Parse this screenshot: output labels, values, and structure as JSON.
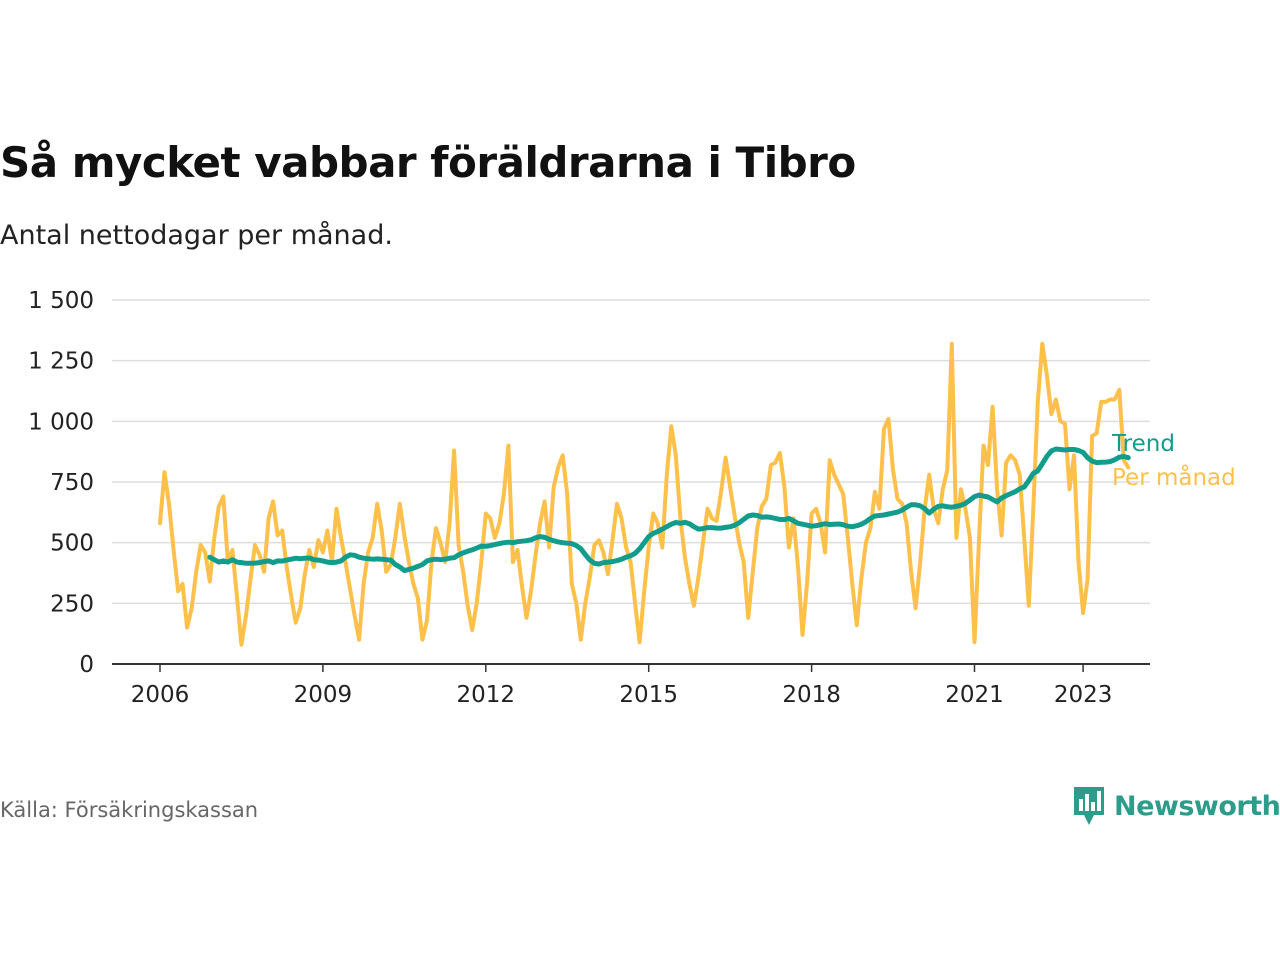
{
  "title": "Så mycket vabbar föräldrarna i Tibro",
  "subtitle": "Antal nettodagar per månad.",
  "source": "Källa: Försäkringskassan",
  "brand": {
    "name": "Newsworthy",
    "color": "#2e9c8a",
    "icon": "newsworthy-logo-icon"
  },
  "colors": {
    "trend": "#129c8c",
    "monthly": "#fdc04a",
    "grid": "#dddddd",
    "axis": "#333333"
  },
  "chart_data": {
    "type": "line",
    "title": "Så mycket vabbar föräldrarna i Tibro",
    "subtitle": "Antal nettodagar per månad.",
    "ylim": [
      0,
      1500
    ],
    "yticks": [
      0,
      250,
      500,
      750,
      1000,
      1250,
      1500
    ],
    "ytick_labels": [
      "0",
      "250",
      "500",
      "750",
      "1 000",
      "1 250",
      "1 500"
    ],
    "xlim": [
      2006.0,
      2023.75
    ],
    "xticks": [
      2006,
      2009,
      2012,
      2015,
      2018,
      2021,
      2023
    ],
    "xtick_labels": [
      "2006",
      "2009",
      "2012",
      "2015",
      "2018",
      "2021",
      "2023"
    ],
    "grid": true,
    "legend": "direct labels at line ends",
    "series": [
      {
        "name": "Per månad",
        "color": "#fdc04a",
        "x_start": 2006.0,
        "step": 0.08333,
        "values": [
          580,
          790,
          660,
          470,
          300,
          330,
          150,
          230,
          380,
          490,
          460,
          340,
          520,
          650,
          690,
          420,
          470,
          280,
          80,
          200,
          350,
          490,
          450,
          380,
          600,
          670,
          530,
          550,
          400,
          280,
          170,
          230,
          370,
          470,
          400,
          510,
          460,
          550,
          420,
          640,
          520,
          420,
          310,
          200,
          100,
          330,
          460,
          520,
          660,
          550,
          380,
          410,
          520,
          660,
          530,
          420,
          330,
          270,
          100,
          180,
          420,
          560,
          500,
          420,
          580,
          880,
          490,
          380,
          240,
          140,
          250,
          420,
          620,
          600,
          520,
          580,
          700,
          900,
          420,
          470,
          320,
          190,
          300,
          450,
          580,
          670,
          480,
          730,
          810,
          860,
          700,
          330,
          250,
          100,
          250,
          360,
          490,
          510,
          460,
          370,
          510,
          660,
          600,
          480,
          420,
          250,
          90,
          300,
          480,
          620,
          580,
          480,
          780,
          980,
          860,
          600,
          440,
          330,
          240,
          360,
          500,
          640,
          600,
          590,
          710,
          850,
          730,
          610,
          500,
          420,
          190,
          380,
          560,
          650,
          680,
          820,
          830,
          870,
          730,
          480,
          600,
          400,
          120,
          330,
          620,
          640,
          580,
          460,
          840,
          780,
          740,
          700,
          520,
          330,
          160,
          350,
          500,
          560,
          710,
          640,
          970,
          1010,
          800,
          680,
          660,
          580,
          380,
          230,
          420,
          640,
          780,
          640,
          580,
          720,
          800,
          1320,
          520,
          720,
          640,
          520,
          90,
          510,
          900,
          820,
          1060,
          720,
          530,
          830,
          860,
          840,
          780,
          520,
          240,
          640,
          1080,
          1320,
          1190,
          1030,
          1090,
          1000,
          990,
          720,
          860,
          420,
          210,
          350,
          940,
          950,
          1080,
          1080,
          1090,
          1090,
          1130,
          840,
          810
        ]
      },
      {
        "name": "Trend",
        "color": "#129c8c",
        "x_start": 2006.917,
        "step": 0.08333,
        "values": [
          440,
          430,
          420,
          425,
          420,
          430,
          420,
          418,
          415,
          415,
          416,
          418,
          422,
          425,
          418,
          425,
          424,
          428,
          432,
          436,
          434,
          436,
          437,
          430,
          428,
          425,
          420,
          418,
          420,
          425,
          440,
          450,
          448,
          440,
          436,
          434,
          432,
          433,
          432,
          430,
          428,
          410,
          400,
          385,
          390,
          395,
          402,
          410,
          425,
          430,
          432,
          430,
          432,
          436,
          438,
          450,
          458,
          465,
          470,
          478,
          486,
          485,
          488,
          492,
          496,
          500,
          502,
          500,
          504,
          506,
          508,
          512,
          520,
          525,
          522,
          514,
          508,
          503,
          500,
          498,
          496,
          488,
          475,
          450,
          428,
          415,
          412,
          418,
          420,
          422,
          426,
          432,
          440,
          446,
          456,
          475,
          500,
          525,
          538,
          546,
          556,
          566,
          576,
          583,
          580,
          584,
          578,
          566,
          556,
          558,
          562,
          562,
          560,
          560,
          563,
          566,
          572,
          582,
          596,
          610,
          614,
          612,
          605,
          606,
          604,
          600,
          596,
          595,
          600,
          590,
          580,
          576,
          572,
          568,
          570,
          574,
          578,
          575,
          576,
          577,
          574,
          568,
          566,
          570,
          576,
          586,
          600,
          610,
          612,
          614,
          618,
          622,
          626,
          634,
          646,
          656,
          656,
          652,
          640,
          622,
          638,
          650,
          652,
          648,
          646,
          650,
          654,
          662,
          676,
          690,
          696,
          692,
          688,
          678,
          668,
          684,
          694,
          702,
          710,
          722,
          730,
          756,
          786,
          796,
          826,
          856,
          878,
          886,
          884,
          882,
          884,
          884,
          880,
          872,
          850,
          836,
          830,
          831,
          832,
          834,
          842,
          852,
          855,
          850
        ]
      }
    ],
    "end_labels": [
      "Trend",
      "Per månad"
    ]
  }
}
